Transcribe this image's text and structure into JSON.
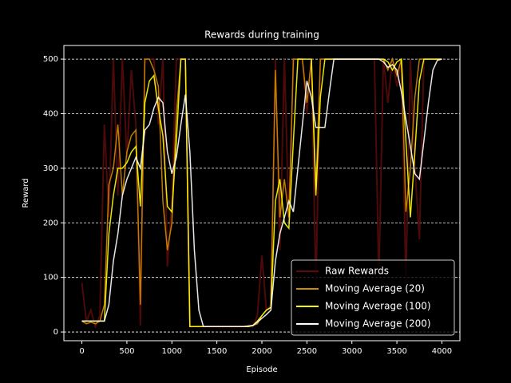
{
  "chart_data": {
    "type": "line",
    "title": "Rewards during training",
    "xlabel": "Episode",
    "ylabel": "Reward",
    "x": [
      0,
      50,
      100,
      150,
      200,
      250,
      300,
      350,
      400,
      450,
      500,
      550,
      600,
      650,
      700,
      750,
      800,
      850,
      900,
      950,
      1000,
      1050,
      1100,
      1150,
      1200,
      1250,
      1300,
      1350,
      1400,
      1450,
      1500,
      1550,
      1600,
      1650,
      1700,
      1750,
      1800,
      1850,
      1900,
      1950,
      2000,
      2050,
      2100,
      2150,
      2200,
      2250,
      2300,
      2350,
      2400,
      2450,
      2500,
      2550,
      2600,
      2650,
      2700,
      2750,
      2800,
      2850,
      2900,
      2950,
      3000,
      3050,
      3100,
      3150,
      3200,
      3250,
      3300,
      3350,
      3400,
      3450,
      3500,
      3550,
      3600,
      3650,
      3700,
      3750,
      3800,
      3850,
      3900,
      3950,
      4000
    ],
    "series": [
      {
        "name": "Raw Rewards",
        "color": "#5c0a0a",
        "values": [
          90,
          20,
          40,
          10,
          30,
          380,
          210,
          500,
          250,
          500,
          320,
          480,
          380,
          12,
          500,
          500,
          500,
          380,
          500,
          120,
          240,
          500,
          500,
          500,
          10,
          10,
          10,
          10,
          10,
          10,
          10,
          10,
          10,
          10,
          10,
          10,
          10,
          10,
          10,
          30,
          140,
          40,
          50,
          500,
          150,
          500,
          200,
          500,
          500,
          500,
          400,
          500,
          80,
          500,
          500,
          500,
          500,
          500,
          500,
          500,
          500,
          500,
          500,
          500,
          500,
          500,
          100,
          500,
          420,
          500,
          450,
          500,
          90,
          500,
          300,
          170,
          500,
          500,
          500,
          500,
          500
        ]
      },
      {
        "name": "Moving Average (20)",
        "color": "#d08a00",
        "values": [
          20,
          15,
          18,
          15,
          20,
          50,
          270,
          300,
          380,
          250,
          330,
          360,
          370,
          50,
          500,
          500,
          480,
          450,
          240,
          150,
          200,
          400,
          500,
          500,
          10,
          10,
          10,
          10,
          10,
          10,
          10,
          10,
          10,
          10,
          10,
          10,
          10,
          10,
          12,
          15,
          30,
          40,
          45,
          480,
          210,
          280,
          210,
          500,
          500,
          500,
          420,
          500,
          260,
          500,
          500,
          500,
          500,
          500,
          500,
          500,
          500,
          500,
          500,
          500,
          500,
          500,
          500,
          500,
          480,
          500,
          470,
          500,
          220,
          300,
          430,
          500,
          500,
          500,
          500,
          500,
          500
        ]
      },
      {
        "name": "Moving Average (100)",
        "color": "#ffff00",
        "values": [
          20,
          20,
          20,
          20,
          20,
          20,
          180,
          250,
          300,
          300,
          310,
          330,
          340,
          230,
          420,
          460,
          470,
          410,
          360,
          230,
          220,
          350,
          500,
          500,
          10,
          10,
          10,
          10,
          10,
          10,
          10,
          10,
          10,
          10,
          10,
          10,
          10,
          10,
          12,
          20,
          30,
          40,
          45,
          240,
          280,
          200,
          190,
          350,
          500,
          500,
          500,
          500,
          250,
          430,
          500,
          500,
          500,
          500,
          500,
          500,
          500,
          500,
          500,
          500,
          500,
          500,
          500,
          500,
          495,
          480,
          495,
          500,
          350,
          210,
          330,
          460,
          500,
          500,
          500,
          500,
          500
        ]
      },
      {
        "name": "Moving Average (200)",
        "color": "#ffffff",
        "values": [
          20,
          20,
          20,
          20,
          20,
          20,
          50,
          130,
          180,
          250,
          280,
          300,
          320,
          300,
          370,
          380,
          410,
          430,
          420,
          330,
          290,
          320,
          380,
          435,
          330,
          150,
          40,
          10,
          10,
          10,
          10,
          10,
          10,
          10,
          10,
          10,
          10,
          11,
          12,
          18,
          25,
          32,
          40,
          130,
          180,
          210,
          240,
          220,
          300,
          380,
          460,
          430,
          375,
          375,
          375,
          440,
          500,
          500,
          500,
          500,
          500,
          500,
          500,
          500,
          500,
          500,
          500,
          495,
          485,
          490,
          480,
          440,
          390,
          340,
          290,
          280,
          350,
          420,
          480,
          498,
          500
        ]
      }
    ],
    "xlim": [
      -200,
      4200
    ],
    "ylim": [
      -16,
      525
    ],
    "xticks": [
      0,
      500,
      1000,
      1500,
      2000,
      2500,
      3000,
      3500,
      4000
    ],
    "yticks": [
      0,
      100,
      200,
      300,
      400,
      500
    ],
    "grid": true,
    "legend": "lower right"
  }
}
